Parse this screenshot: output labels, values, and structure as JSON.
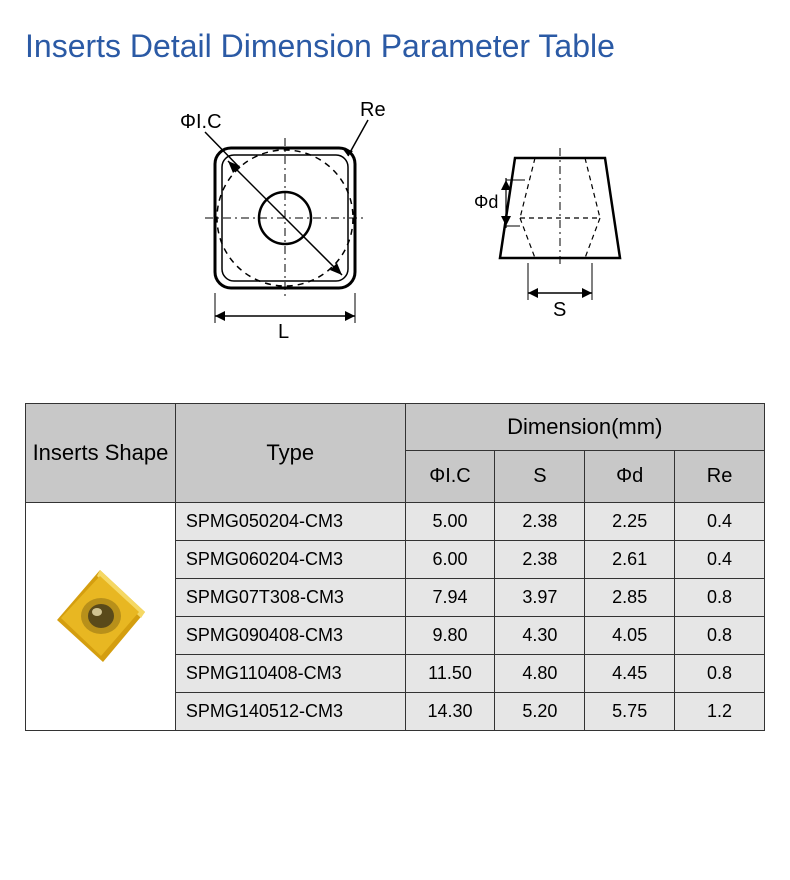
{
  "title": "Inserts Detail Dimension Parameter Table",
  "diagram": {
    "labels": {
      "ic": "ΦI.C",
      "re": "Re",
      "L": "L",
      "d": "Φd",
      "s": "S"
    },
    "stroke": "#000000",
    "dash": "4 4"
  },
  "table": {
    "headers": {
      "shape": "Inserts Shape",
      "type": "Type",
      "dimension_group": "Dimension(mm)",
      "cols": [
        "ΦI.C",
        "S",
        "Φd",
        "Re"
      ]
    },
    "rows": [
      {
        "type": "SPMG050204-CM3",
        "ic": "5.00",
        "s": "2.38",
        "d": "2.25",
        "re": "0.4"
      },
      {
        "type": "SPMG060204-CM3",
        "ic": "6.00",
        "s": "2.38",
        "d": "2.61",
        "re": "0.4"
      },
      {
        "type": "SPMG07T308-CM3",
        "ic": "7.94",
        "s": "3.97",
        "d": "2.85",
        "re": "0.8"
      },
      {
        "type": "SPMG090408-CM3",
        "ic": "9.80",
        "s": "4.30",
        "d": "4.05",
        "re": "0.8"
      },
      {
        "type": "SPMG110408-CM3",
        "ic": "11.50",
        "s": "4.80",
        "d": "4.45",
        "re": "0.8"
      },
      {
        "type": "SPMG140512-CM3",
        "ic": "14.30",
        "s": "5.20",
        "d": "5.75",
        "re": "1.2"
      }
    ],
    "header_bg": "#c8c8c8",
    "cell_bg": "#e6e6e6",
    "border_color": "#333333"
  },
  "insert_icon": {
    "face_color": "#e8b722",
    "edge_color": "#d49e0f",
    "highlight": "#f5d864",
    "hole_dark": "#5a4a1a",
    "hole_ring": "#b8901a"
  }
}
